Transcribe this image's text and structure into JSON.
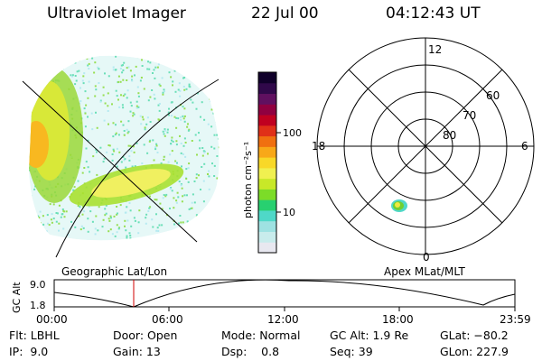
{
  "header": {
    "instrument": "Ultraviolet Imager",
    "date": "22 Jul 00",
    "time": "04:12:43 UT"
  },
  "colorbar": {
    "unit_label": "photon cm⁻²s⁻¹",
    "tick_100": "100",
    "tick_10": "10",
    "colors": [
      "#e8e8f0",
      "#c8ecec",
      "#9ee2e2",
      "#4fd8c8",
      "#28d070",
      "#7cdc28",
      "#c8e828",
      "#f0f050",
      "#f8d828",
      "#f8a818",
      "#f07010",
      "#e03018",
      "#c00020",
      "#900040",
      "#601060",
      "#30084a",
      "#10002a"
    ]
  },
  "polar_plot": {
    "mlt_labels": {
      "top": "12",
      "left": "18",
      "right": "6",
      "bottom": "0"
    },
    "lat_labels": [
      "60",
      "70",
      "80"
    ]
  },
  "left_panel_caption": "Geographic Lat/Lon",
  "right_panel_caption": "Apex MLat/MLT",
  "altitude_plot": {
    "ylabel": "GC Alt",
    "ymax_label": "9.0",
    "ymin_label": "1.8",
    "x_ticks": [
      "00:00",
      "06:00",
      "12:00",
      "18:00",
      "23:59"
    ],
    "marker_color": "#d00000"
  },
  "status": {
    "flt": "Flt: LBHL",
    "ip": "IP:  9.0",
    "door": "Door: Open",
    "gain": "Gain: 13",
    "mode": "Mode: Normal",
    "dsp": "Dsp:    0.8",
    "gc_alt": "GC Alt: 1.9 Re",
    "seq": "Seq: 39",
    "glat": "GLat: −80.2",
    "glon": "GLon: 227.9"
  }
}
